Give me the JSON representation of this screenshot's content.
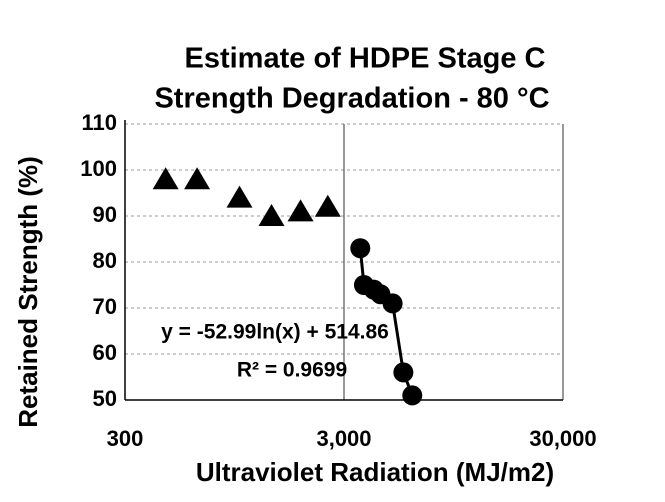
{
  "chart_data": {
    "type": "scatter",
    "title": [
      "Estimate of HDPE Stage C",
      "Strength Degradation - 80 °C"
    ],
    "x_label": "Ultraviolet Radiation (MJ/m2)",
    "y_label": "Retained Strength (%)",
    "xscale": "log",
    "xlim": [
      300,
      30000
    ],
    "xticks": [
      300,
      {
        "value": 3000,
        "label": "3,000"
      },
      {
        "value": 30000,
        "label": "30,000"
      }
    ],
    "ylim": [
      50,
      110
    ],
    "yticks": [
      50,
      60,
      70,
      80,
      90,
      100,
      110
    ],
    "grid": true,
    "series": [
      {
        "marker": "triangle",
        "color": "#000000",
        "connect": false,
        "x": [
          460,
          640,
          1000,
          1400,
          1900,
          2530
        ],
        "values": [
          98,
          98,
          94,
          90,
          91,
          92
        ]
      },
      {
        "marker": "circle",
        "color": "#000000",
        "connect": true,
        "x": [
          3560,
          3700,
          4100,
          4400,
          5000,
          5600,
          6150
        ],
        "values": [
          83,
          75,
          74,
          73,
          71,
          56,
          51
        ]
      }
    ],
    "annotations": [
      {
        "text": "y = -52.99ln(x) + 514.86"
      },
      {
        "text": "R² = 0.9699"
      }
    ]
  }
}
